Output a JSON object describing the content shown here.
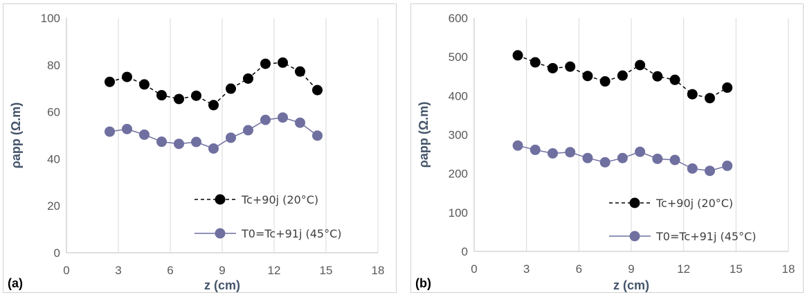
{
  "colors": {
    "series1": "#000000",
    "series2": "#6f6fa0",
    "grid": "#d9d9d9",
    "axis_title": "#44546a"
  },
  "chart_data": [
    {
      "type": "line",
      "panel_label": "(a)",
      "xlabel": "z (cm)",
      "ylabel": "ρapp (Ω.m)",
      "xlim": [
        0,
        18
      ],
      "ylim": [
        0,
        100
      ],
      "xticks": [
        0,
        3,
        6,
        9,
        12,
        15,
        18
      ],
      "yticks": [
        0,
        20,
        40,
        60,
        80,
        100
      ],
      "grid": "vertical",
      "legend_position": "bottom-right",
      "x": [
        2.5,
        3.5,
        4.5,
        5.5,
        6.5,
        7.5,
        8.5,
        9.5,
        10.5,
        11.5,
        12.5,
        13.5,
        14.5
      ],
      "series": [
        {
          "name": "Tc+90j (20°C)",
          "style": "dashed",
          "values": [
            72.8,
            74.9,
            71.7,
            67.1,
            65.5,
            66.9,
            62.9,
            69.9,
            74.2,
            80.5,
            81.0,
            77.2,
            69.3
          ]
        },
        {
          "name": "T0=Tc+91j (45°C)",
          "style": "solid",
          "values": [
            51.6,
            52.7,
            50.3,
            47.3,
            46.4,
            47.2,
            44.4,
            49.0,
            52.2,
            56.6,
            57.6,
            55.4,
            49.9
          ]
        }
      ]
    },
    {
      "type": "line",
      "panel_label": "(b)",
      "xlabel": "z (cm)",
      "ylabel": "ρapp (Ω.m)",
      "xlim": [
        0,
        18
      ],
      "ylim": [
        0,
        600
      ],
      "xticks": [
        0,
        3,
        6,
        9,
        12,
        15,
        18
      ],
      "yticks": [
        0,
        100,
        200,
        300,
        400,
        500,
        600
      ],
      "grid": "vertical",
      "legend_position": "bottom-right",
      "x": [
        2.5,
        3.5,
        4.5,
        5.5,
        6.5,
        7.5,
        8.5,
        9.5,
        10.5,
        11.5,
        12.5,
        13.5,
        14.5
      ],
      "series": [
        {
          "name": "Tc+90j (20°C)",
          "style": "dashed",
          "values": [
            504,
            486,
            471,
            475,
            451,
            437,
            452,
            479,
            450,
            441,
            404,
            394,
            421
          ]
        },
        {
          "name": "T0=Tc+91j (45°C)",
          "style": "solid",
          "values": [
            272,
            261,
            252,
            255,
            240,
            229,
            240,
            256,
            238,
            235,
            213,
            207,
            220
          ]
        }
      ]
    }
  ]
}
